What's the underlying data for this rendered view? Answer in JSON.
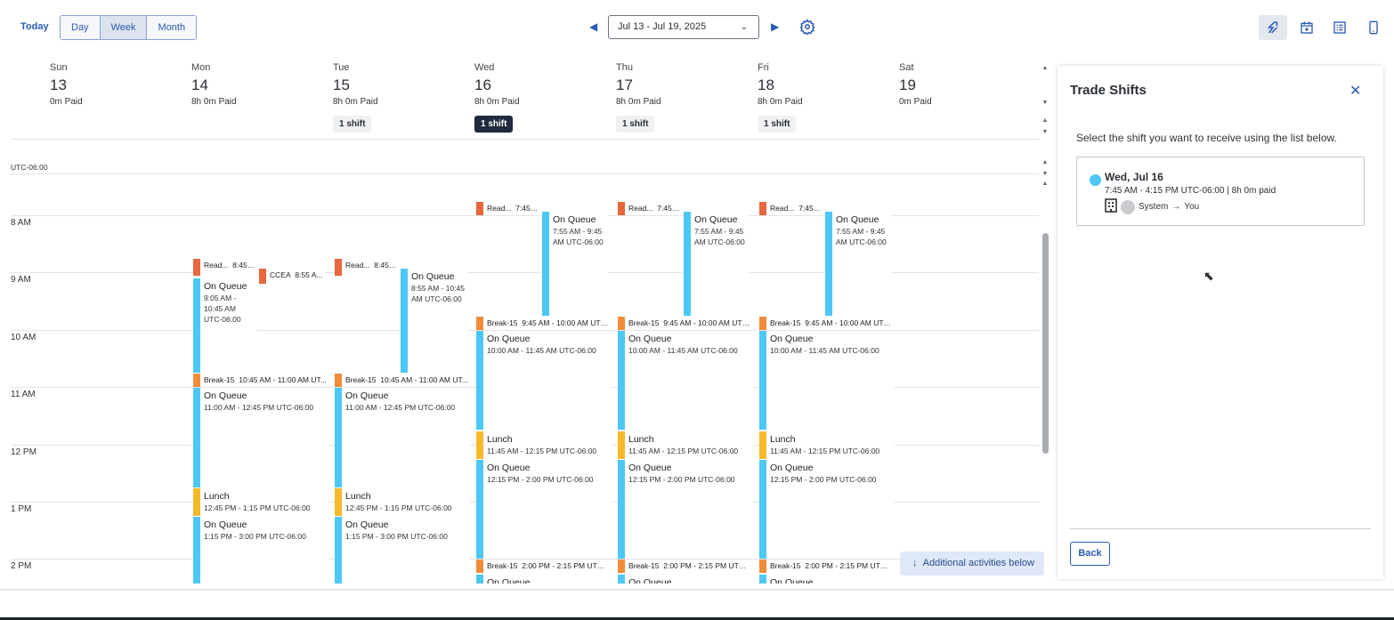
{
  "toolbar": {
    "today": "Today",
    "views": [
      "Day",
      "Week",
      "Month"
    ],
    "active_view": "Week",
    "date_range": "Jul 13 - Jul 19, 2025",
    "icons": [
      "trade-shifts-icon",
      "calendar-add-icon",
      "list-view-icon",
      "mobile-icon"
    ],
    "prev_icon": "caret-left-icon",
    "next_icon": "caret-right-icon",
    "settings_icon": "gear-icon"
  },
  "days": [
    {
      "name": "Sun",
      "date": "13",
      "paid": "0m Paid",
      "badge": ""
    },
    {
      "name": "Mon",
      "date": "14",
      "paid": "8h 0m Paid",
      "badge": ""
    },
    {
      "name": "Tue",
      "date": "15",
      "paid": "8h 0m Paid",
      "badge": "1 shift"
    },
    {
      "name": "Wed",
      "date": "16",
      "paid": "8h 0m Paid",
      "badge": "1 shift",
      "selected": true
    },
    {
      "name": "Thu",
      "date": "17",
      "paid": "8h 0m Paid",
      "badge": "1 shift"
    },
    {
      "name": "Fri",
      "date": "18",
      "paid": "8h 0m Paid",
      "badge": "1 shift"
    },
    {
      "name": "Sat",
      "date": "19",
      "paid": "0m Paid",
      "badge": ""
    }
  ],
  "timezone": "UTC-06:00",
  "hours": [
    {
      "h": 8,
      "label": "8 AM"
    },
    {
      "h": 9,
      "label": "9 AM"
    },
    {
      "h": 10,
      "label": "10 AM"
    },
    {
      "h": 11,
      "label": "11 AM"
    },
    {
      "h": 12,
      "label": "12 PM"
    },
    {
      "h": 13,
      "label": "1 PM"
    },
    {
      "h": 14,
      "label": "2 PM"
    }
  ],
  "colors": {
    "Read": "#e8673e",
    "CCEA": "#e8673e",
    "Break": "#f08c3a",
    "Lunch": "#f6b92b",
    "Queue": "#4dc8f5"
  },
  "events": [
    {
      "day": 1,
      "lane": "left",
      "type": "Read",
      "start": 8.75,
      "end": 9.05,
      "name": "Read...",
      "time": "8:45 A..."
    },
    {
      "day": 1,
      "lane": "right",
      "type": "CCEA",
      "start": 8.917,
      "end": 9.2,
      "name": "CCEA",
      "time": "8:55 A..."
    },
    {
      "day": 1,
      "lane": "left",
      "type": "Queue",
      "start": 9.083,
      "end": 10.75,
      "name": "On Queue",
      "time": "9:05 AM - 10:45 AM UTC-06:00"
    },
    {
      "day": 1,
      "lane": "full",
      "type": "Break",
      "start": 10.75,
      "end": 11,
      "name": "Break-15",
      "time": "10:45 AM - 11:00 AM UT..."
    },
    {
      "day": 1,
      "lane": "full",
      "type": "Queue",
      "start": 11,
      "end": 12.75,
      "name": "On Queue",
      "time": "11:00 AM - 12:45 PM UTC-06:00"
    },
    {
      "day": 1,
      "lane": "full",
      "type": "Lunch",
      "start": 12.75,
      "end": 13.25,
      "name": "Lunch",
      "time": "12:45 PM - 1:15 PM UTC-06:00"
    },
    {
      "day": 1,
      "lane": "full",
      "type": "Queue",
      "start": 13.25,
      "end": 15,
      "name": "On Queue",
      "time": "1:15 PM - 3:00 PM UTC-06:00"
    },
    {
      "day": 2,
      "lane": "left",
      "type": "Read",
      "start": 8.75,
      "end": 9.05,
      "name": "Read...",
      "time": "8:45 A..."
    },
    {
      "day": 2,
      "lane": "right",
      "type": "Queue",
      "start": 8.917,
      "end": 10.75,
      "name": "On Queue",
      "time": "8:55 AM - 10:45 AM UTC-06:00"
    },
    {
      "day": 2,
      "lane": "full",
      "type": "Break",
      "start": 10.75,
      "end": 11,
      "name": "Break-15",
      "time": "10:45 AM - 11:00 AM UT..."
    },
    {
      "day": 2,
      "lane": "full",
      "type": "Queue",
      "start": 11,
      "end": 12.75,
      "name": "On Queue",
      "time": "11:00 AM - 12:45 PM UTC-06:00"
    },
    {
      "day": 2,
      "lane": "full",
      "type": "Lunch",
      "start": 12.75,
      "end": 13.25,
      "name": "Lunch",
      "time": "12:45 PM - 1:15 PM UTC-06:00"
    },
    {
      "day": 2,
      "lane": "full",
      "type": "Queue",
      "start": 13.25,
      "end": 15,
      "name": "On Queue",
      "time": "1:15 PM - 3:00 PM UTC-06:00"
    },
    {
      "day": 3,
      "lane": "left",
      "type": "Read",
      "start": 7.75,
      "end": 8,
      "name": "Read...",
      "time": "7:45 A..."
    },
    {
      "day": 3,
      "lane": "right",
      "type": "Queue",
      "start": 7.917,
      "end": 9.75,
      "name": "On Queue",
      "time": "7:55 AM - 9:45 AM UTC-06:00"
    },
    {
      "day": 3,
      "lane": "full",
      "type": "Break",
      "start": 9.75,
      "end": 10,
      "name": "Break-15",
      "time": "9:45 AM - 10:00 AM UTC..."
    },
    {
      "day": 3,
      "lane": "full",
      "type": "Queue",
      "start": 10,
      "end": 11.75,
      "name": "On Queue",
      "time": "10:00 AM - 11:45 AM UTC-06:00"
    },
    {
      "day": 3,
      "lane": "full",
      "type": "Lunch",
      "start": 11.75,
      "end": 12.25,
      "name": "Lunch",
      "time": "11:45 AM - 12:15 PM UTC-06:00"
    },
    {
      "day": 3,
      "lane": "full",
      "type": "Queue",
      "start": 12.25,
      "end": 14,
      "name": "On Queue",
      "time": "12:15 PM - 2:00 PM UTC-06:00"
    },
    {
      "day": 3,
      "lane": "full",
      "type": "Break",
      "start": 14,
      "end": 14.25,
      "name": "Break-15",
      "time": "2:00 PM - 2:15 PM UTC-..."
    },
    {
      "day": 3,
      "lane": "full",
      "type": "Queue",
      "start": 14.25,
      "end": 16,
      "name": "On Queue",
      "time": ""
    },
    {
      "day": 4,
      "lane": "left",
      "type": "Read",
      "start": 7.75,
      "end": 8,
      "name": "Read...",
      "time": "7:45 A..."
    },
    {
      "day": 4,
      "lane": "right",
      "type": "Queue",
      "start": 7.917,
      "end": 9.75,
      "name": "On Queue",
      "time": "7:55 AM - 9:45 AM UTC-06:00"
    },
    {
      "day": 4,
      "lane": "full",
      "type": "Break",
      "start": 9.75,
      "end": 10,
      "name": "Break-15",
      "time": "9:45 AM - 10:00 AM UTC..."
    },
    {
      "day": 4,
      "lane": "full",
      "type": "Queue",
      "start": 10,
      "end": 11.75,
      "name": "On Queue",
      "time": "10:00 AM - 11:45 AM UTC-06:00"
    },
    {
      "day": 4,
      "lane": "full",
      "type": "Lunch",
      "start": 11.75,
      "end": 12.25,
      "name": "Lunch",
      "time": "11:45 AM - 12:15 PM UTC-06:00"
    },
    {
      "day": 4,
      "lane": "full",
      "type": "Queue",
      "start": 12.25,
      "end": 14,
      "name": "On Queue",
      "time": "12:15 PM - 2:00 PM UTC-06:00"
    },
    {
      "day": 4,
      "lane": "full",
      "type": "Break",
      "start": 14,
      "end": 14.25,
      "name": "Break-15",
      "time": "2:00 PM - 2:15 PM UTC-..."
    },
    {
      "day": 4,
      "lane": "full",
      "type": "Queue",
      "start": 14.25,
      "end": 16,
      "name": "On Queue",
      "time": ""
    },
    {
      "day": 5,
      "lane": "left",
      "type": "Read",
      "start": 7.75,
      "end": 8,
      "name": "Read...",
      "time": "7:45 A..."
    },
    {
      "day": 5,
      "lane": "right",
      "type": "Queue",
      "start": 7.917,
      "end": 9.75,
      "name": "On Queue",
      "time": "7:55 AM - 9:45 AM UTC-06:00"
    },
    {
      "day": 5,
      "lane": "full",
      "type": "Break",
      "start": 9.75,
      "end": 10,
      "name": "Break-15",
      "time": "9:45 AM - 10:00 AM UTC..."
    },
    {
      "day": 5,
      "lane": "full",
      "type": "Queue",
      "start": 10,
      "end": 11.75,
      "name": "On Queue",
      "time": "10:00 AM - 11:45 AM UTC-06:00"
    },
    {
      "day": 5,
      "lane": "full",
      "type": "Lunch",
      "start": 11.75,
      "end": 12.25,
      "name": "Lunch",
      "time": "11:45 AM - 12:15 PM UTC-06:00"
    },
    {
      "day": 5,
      "lane": "full",
      "type": "Queue",
      "start": 12.25,
      "end": 14,
      "name": "On Queue",
      "time": "12:15 PM - 2:00 PM UTC-06:00"
    },
    {
      "day": 5,
      "lane": "full",
      "type": "Break",
      "start": 14,
      "end": 14.25,
      "name": "Break-15",
      "time": "2:00 PM - 2:15 PM UTC-..."
    },
    {
      "day": 5,
      "lane": "full",
      "type": "Queue",
      "start": 14.25,
      "end": 16,
      "name": "On Queue",
      "time": ""
    }
  ],
  "additional": "Additional activities below",
  "panel": {
    "title": "Trade Shifts",
    "description": "Select the shift you want to receive using the list below.",
    "shift": {
      "date": "Wed, Jul 16",
      "time": "7:45 AM - 4:15 PM UTC-06:00 | 8h 0m paid",
      "from": "System",
      "arrow": "→",
      "to": "You"
    },
    "back": "Back"
  }
}
